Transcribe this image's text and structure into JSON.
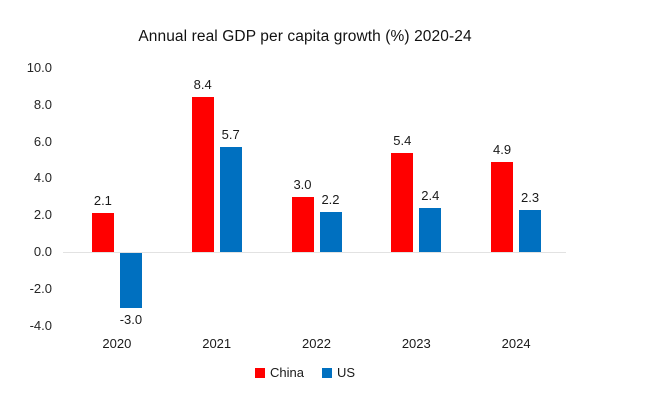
{
  "chart_data": {
    "type": "bar",
    "title": "Annual real GDP per capita growth (%) 2020-24",
    "categories": [
      "2020",
      "2021",
      "2022",
      "2023",
      "2024"
    ],
    "series": [
      {
        "name": "China",
        "color": "#FF0000",
        "values": [
          2.1,
          8.4,
          3.0,
          5.4,
          4.9
        ],
        "labels": [
          "2.1",
          "8.4",
          "3.0",
          "5.4",
          "4.9"
        ]
      },
      {
        "name": "US",
        "color": "#0070C0",
        "values": [
          -3.0,
          5.7,
          2.2,
          2.4,
          2.3
        ],
        "labels": [
          "-3.0",
          "5.7",
          "2.2",
          "2.4",
          "2.3"
        ]
      }
    ],
    "ylim": [
      -4,
      10
    ],
    "yticks": [
      {
        "value": 10,
        "label": "10.0"
      },
      {
        "value": 8,
        "label": "8.0"
      },
      {
        "value": 6,
        "label": "6.0"
      },
      {
        "value": 4,
        "label": "4.0"
      },
      {
        "value": 2,
        "label": "2.0"
      },
      {
        "value": 0,
        "label": "0.0"
      },
      {
        "value": -2,
        "label": "-2.0"
      },
      {
        "value": -4,
        "label": "-4.0"
      }
    ],
    "grid": false,
    "legend_position": "bottom",
    "axis_line_color": "#E2E2E2",
    "text_color": "#1A1A1A",
    "background": "#FFFFFF"
  }
}
